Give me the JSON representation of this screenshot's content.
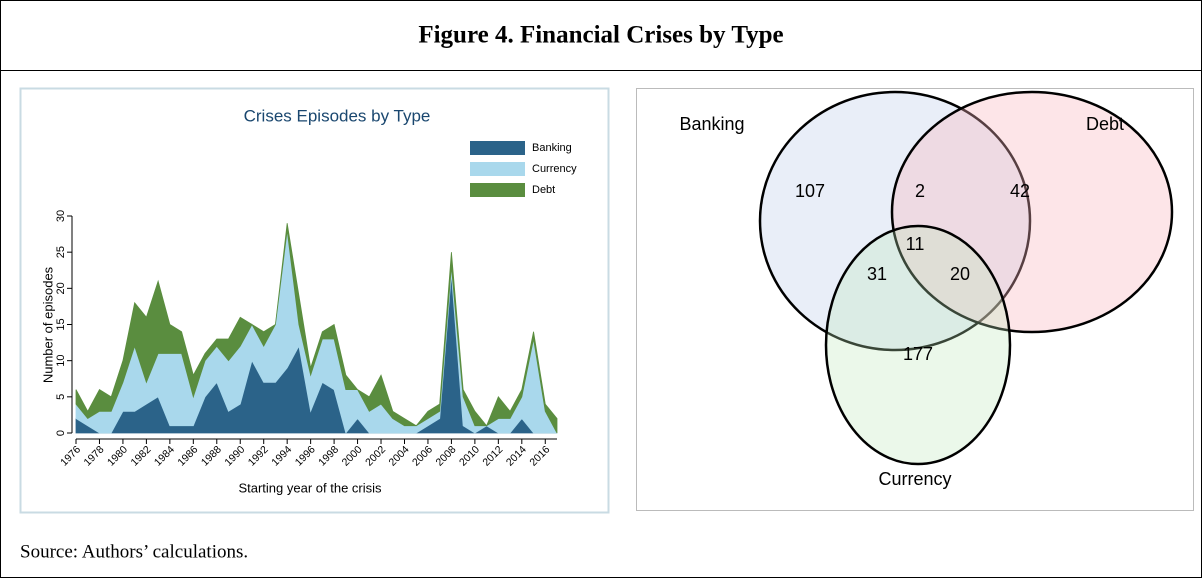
{
  "header": {
    "title": "Figure 4. Financial Crises by Type"
  },
  "chart_data": {
    "type": "area",
    "stacked": true,
    "title": "Crises Episodes by Type",
    "x_label": "Starting year of the crisis",
    "y_label": "Number of episodes",
    "x": [
      1976,
      1977,
      1978,
      1979,
      1980,
      1981,
      1982,
      1983,
      1984,
      1985,
      1986,
      1987,
      1988,
      1989,
      1990,
      1991,
      1992,
      1993,
      1994,
      1995,
      1996,
      1997,
      1998,
      1999,
      2000,
      2001,
      2002,
      2003,
      2004,
      2005,
      2006,
      2007,
      2008,
      2009,
      2010,
      2011,
      2012,
      2013,
      2014,
      2015,
      2016,
      2017
    ],
    "series": [
      {
        "name": "Banking",
        "color": "#2b6389",
        "values": [
          2,
          1,
          0,
          0,
          3,
          3,
          4,
          5,
          1,
          1,
          1,
          5,
          7,
          3,
          4,
          10,
          7,
          7,
          9,
          12,
          3,
          7,
          6,
          0,
          2,
          0,
          0,
          0,
          0,
          0,
          1,
          2,
          22,
          1,
          0,
          1,
          0,
          0,
          2,
          0,
          0,
          0
        ]
      },
      {
        "name": "Currency",
        "color": "#a9d8ec",
        "values": [
          2,
          1,
          3,
          3,
          4,
          9,
          3,
          6,
          10,
          10,
          4,
          5,
          5,
          7,
          8,
          5,
          5,
          8,
          19,
          3,
          5,
          6,
          7,
          6,
          4,
          3,
          4,
          2,
          1,
          1,
          1,
          1,
          1,
          4,
          1,
          0,
          2,
          2,
          3,
          13,
          3,
          0
        ]
      },
      {
        "name": "Debt",
        "color": "#5a8d3f",
        "values": [
          2,
          1,
          3,
          2,
          3,
          6,
          9,
          10,
          4,
          3,
          3,
          1,
          1,
          3,
          4,
          0,
          2,
          0,
          1,
          4,
          1,
          1,
          2,
          2,
          0,
          2,
          4,
          1,
          1,
          0,
          1,
          1,
          2,
          1,
          2,
          0,
          3,
          1,
          1,
          1,
          1,
          2
        ]
      }
    ],
    "xlim": [
      1976,
      2017
    ],
    "xticks": [
      1976,
      1978,
      1980,
      1982,
      1984,
      1986,
      1988,
      1990,
      1992,
      1994,
      1996,
      1998,
      2000,
      2002,
      2004,
      2006,
      2008,
      2010,
      2012,
      2014,
      2016
    ],
    "ylim": [
      0,
      30
    ],
    "yticks": [
      0,
      5,
      10,
      15,
      20,
      25,
      30
    ],
    "legend": "top-right",
    "grid": false
  },
  "venn": {
    "sets": [
      "Banking",
      "Debt",
      "Currency"
    ],
    "counts": [
      107,
      2,
      42,
      11,
      31,
      20,
      177
    ]
  },
  "footer": {
    "source": "Source: Authors’ calculations."
  }
}
